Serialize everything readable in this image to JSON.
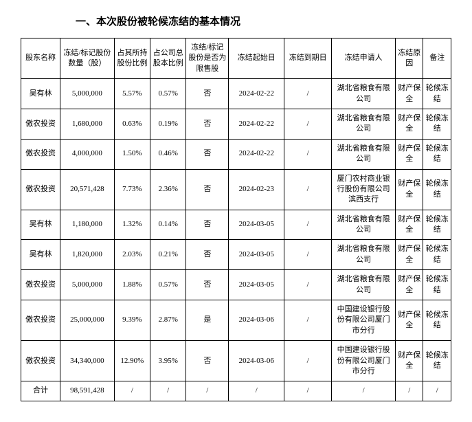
{
  "section_title": "一、本次股份被轮候冻结的基本情况",
  "table": {
    "headers": {
      "name": "股东名称",
      "shares": "冻结/标记股份数量（股）",
      "pct_holding": "占其所持股份比例",
      "pct_total": "占公司总股本比例",
      "restricted": "冻结/标记股份是否为限售股",
      "start_date": "冻结起始日",
      "end_date": "冻结到期日",
      "applicant": "冻结申请人",
      "reason": "冻结原因",
      "remark": "备注"
    },
    "rows": [
      {
        "name": "吴有林",
        "shares": "5,000,000",
        "pct_holding": "5.57%",
        "pct_total": "0.57%",
        "restricted": "否",
        "start_date": "2024-02-22",
        "end_date": "/",
        "applicant": "湖北省粮食有限公司",
        "reason": "财产保全",
        "remark": "轮候冻结"
      },
      {
        "name": "傲农投资",
        "shares": "1,680,000",
        "pct_holding": "0.63%",
        "pct_total": "0.19%",
        "restricted": "否",
        "start_date": "2024-02-22",
        "end_date": "/",
        "applicant": "湖北省粮食有限公司",
        "reason": "财产保全",
        "remark": "轮候冻结"
      },
      {
        "name": "傲农投资",
        "shares": "4,000,000",
        "pct_holding": "1.50%",
        "pct_total": "0.46%",
        "restricted": "否",
        "start_date": "2024-02-22",
        "end_date": "/",
        "applicant": "湖北省粮食有限公司",
        "reason": "财产保全",
        "remark": "轮候冻结"
      },
      {
        "name": "傲农投资",
        "shares": "20,571,428",
        "pct_holding": "7.73%",
        "pct_total": "2.36%",
        "restricted": "否",
        "start_date": "2024-02-23",
        "end_date": "/",
        "applicant": "厦门农村商业银行股份有限公司滨西支行",
        "reason": "财产保全",
        "remark": "轮候冻结"
      },
      {
        "name": "吴有林",
        "shares": "1,180,000",
        "pct_holding": "1.32%",
        "pct_total": "0.14%",
        "restricted": "否",
        "start_date": "2024-03-05",
        "end_date": "/",
        "applicant": "湖北省粮食有限公司",
        "reason": "财产保全",
        "remark": "轮候冻结"
      },
      {
        "name": "吴有林",
        "shares": "1,820,000",
        "pct_holding": "2.03%",
        "pct_total": "0.21%",
        "restricted": "否",
        "start_date": "2024-03-05",
        "end_date": "/",
        "applicant": "湖北省粮食有限公司",
        "reason": "财产保全",
        "remark": "轮候冻结"
      },
      {
        "name": "傲农投资",
        "shares": "5,000,000",
        "pct_holding": "1.88%",
        "pct_total": "0.57%",
        "restricted": "否",
        "start_date": "2024-03-05",
        "end_date": "/",
        "applicant": "湖北省粮食有限公司",
        "reason": "财产保全",
        "remark": "轮候冻结"
      },
      {
        "name": "傲农投资",
        "shares": "25,000,000",
        "pct_holding": "9.39%",
        "pct_total": "2.87%",
        "restricted": "是",
        "start_date": "2024-03-06",
        "end_date": "/",
        "applicant": "中国建设银行股份有限公司厦门市分行",
        "reason": "财产保全",
        "remark": "轮候冻结"
      },
      {
        "name": "傲农投资",
        "shares": "34,340,000",
        "pct_holding": "12.90%",
        "pct_total": "3.95%",
        "restricted": "否",
        "start_date": "2024-03-06",
        "end_date": "/",
        "applicant": "中国建设银行股份有限公司厦门市分行",
        "reason": "财产保全",
        "remark": "轮候冻结"
      }
    ],
    "total": {
      "name": "合计",
      "shares": "98,591,428",
      "pct_holding": "/",
      "pct_total": "/",
      "restricted": "/",
      "start_date": "/",
      "end_date": "/",
      "applicant": "/",
      "reason": "/",
      "remark": "/"
    }
  }
}
